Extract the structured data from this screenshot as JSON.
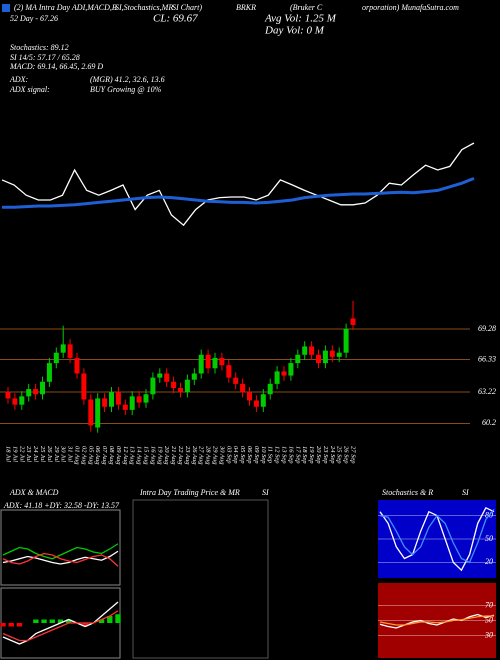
{
  "header": {
    "items": [
      "(2) MA Intra Day ADI,MACD,B",
      "SI,Stochastics,MR",
      "SI Chart)",
      "BRKR",
      "(Bruker C",
      "orporation) MunafaSutra.com",
      "52 Day - 67.26",
      "CL: 69.67",
      "Avg Vol: 1.25 M",
      "Day Vol: 0 M",
      "Stochastics: 89.12",
      "SI 14/5: 57.17 / 65.28",
      "MACD: 69.14, 66.45, 2.69 D",
      "ADX:",
      "(MGR) 41.2, 32.6, 13.6",
      "ADX  signal:",
      "BUY Growing @ 10%"
    ]
  },
  "chart_data": [
    {
      "type": "line",
      "ylim": [
        0,
        100
      ],
      "series": [
        {
          "color": "#ffffff",
          "values": [
            66.7,
            62.5,
            54,
            50,
            50,
            54,
            75,
            58,
            54,
            58,
            62.5,
            42,
            54,
            58,
            37.5,
            29,
            42,
            50,
            52,
            52.5,
            52.5,
            50,
            54,
            66.7,
            62.5,
            58,
            54,
            50,
            46,
            46,
            47.5,
            54,
            64,
            62.5,
            71,
            79,
            75,
            78,
            92,
            97.5
          ]
        },
        {
          "color": "#1f5fd6",
          "values": [
            44,
            44,
            44.5,
            45,
            45,
            45.5,
            46,
            47,
            48,
            49,
            50,
            51,
            52,
            52.5,
            52,
            51,
            50,
            49,
            48.5,
            48,
            48,
            47.5,
            48,
            49,
            50,
            52,
            53,
            54,
            54.5,
            55,
            55,
            55.5,
            56,
            56.5,
            56,
            57,
            58,
            61,
            64,
            68
          ]
        }
      ]
    },
    {
      "type": "candlestick",
      "ylim": [
        58.6,
        72.07
      ],
      "yticks": [
        69.28,
        66.33,
        63.22,
        60.2
      ],
      "grid": true,
      "up_color": "#00cc00",
      "down_color": "#ff0000",
      "grid_color": "#b5651d",
      "categories": [
        "18 Jul",
        "19 Jul",
        "22 Jul",
        "23 Jul",
        "24 Jul",
        "25 Jul",
        "26 Jul",
        "29 Jul",
        "30 Jul",
        "31 Jul",
        "01 Aug",
        "02 Aug",
        "05 Aug",
        "06 Aug",
        "07 Aug",
        "08 Aug",
        "09 Aug",
        "12 Aug",
        "13 Aug",
        "14 Aug",
        "15 Aug",
        "16 Aug",
        "19 Aug",
        "20 Aug",
        "21 Aug",
        "22 Aug",
        "23 Aug",
        "26 Aug",
        "27 Aug",
        "28 Aug",
        "29 Aug",
        "30 Aug",
        "03 Sep",
        "04 Sep",
        "05 Sep",
        "06 Sep",
        "09 Sep",
        "10 Sep",
        "11 Sep",
        "12 Sep",
        "13 Sep",
        "16 Sep",
        "17 Sep",
        "18 Sep",
        "19 Sep",
        "20 Sep",
        "23 Sep",
        "24 Sep",
        "25 Sep",
        "26 Sep",
        "27 Sep"
      ],
      "open": [
        63.2,
        62.6,
        62.0,
        62.8,
        63.5,
        63.0,
        64.2,
        66.0,
        67.0,
        67.8,
        66.5,
        65.0,
        62.5,
        59.8,
        62.6,
        61.8,
        63.2,
        62.0,
        61.5,
        62.8,
        62.2,
        63.0,
        64.6,
        65.0,
        64.2,
        63.6,
        63.2,
        64.4,
        65.0,
        66.8,
        65.5,
        66.5,
        65.8,
        64.6,
        64.0,
        63.2,
        62.4,
        61.8,
        63.0,
        64.0,
        65.2,
        64.8,
        66.0,
        66.8,
        67.6,
        66.8,
        66.0,
        67.2,
        66.6,
        67.0,
        70.3
      ],
      "high": [
        63.7,
        63.1,
        63.3,
        64.0,
        64.0,
        64.7,
        66.5,
        67.5,
        69.6,
        68.3,
        67.0,
        65.5,
        63.0,
        63.1,
        63.1,
        63.7,
        63.7,
        62.5,
        63.3,
        63.3,
        63.5,
        65.1,
        65.5,
        65.5,
        64.7,
        64.1,
        64.9,
        65.5,
        67.3,
        67.3,
        67.0,
        67.0,
        66.3,
        65.1,
        64.5,
        63.7,
        62.9,
        63.5,
        64.5,
        65.7,
        65.7,
        66.5,
        67.3,
        68.1,
        68.1,
        67.3,
        67.7,
        67.7,
        67.5,
        69.8,
        72.0
      ],
      "low": [
        62.1,
        61.5,
        61.5,
        62.3,
        62.5,
        62.5,
        63.7,
        65.5,
        66.5,
        66.0,
        64.5,
        62.0,
        59.4,
        59.3,
        61.3,
        61.3,
        61.5,
        61.0,
        61.0,
        61.7,
        61.7,
        62.5,
        64.1,
        63.7,
        63.1,
        62.7,
        62.7,
        63.9,
        64.5,
        65.0,
        65.0,
        65.3,
        64.1,
        63.5,
        62.7,
        61.9,
        61.3,
        61.3,
        62.5,
        63.5,
        64.3,
        64.3,
        65.5,
        66.3,
        66.3,
        65.5,
        65.5,
        66.1,
        66.1,
        66.5,
        69.2
      ],
      "close": [
        62.6,
        62.0,
        62.8,
        63.5,
        63.0,
        64.2,
        66.0,
        67.0,
        67.8,
        66.5,
        65.0,
        62.5,
        60.0,
        62.6,
        61.8,
        63.2,
        62.0,
        61.5,
        62.8,
        62.2,
        63.0,
        64.6,
        65.0,
        64.2,
        63.6,
        63.2,
        64.4,
        65.0,
        66.8,
        65.5,
        66.5,
        65.8,
        64.6,
        64.0,
        63.2,
        62.4,
        61.8,
        63.0,
        64.0,
        65.2,
        64.8,
        66.0,
        66.8,
        67.6,
        66.8,
        66.0,
        67.2,
        66.6,
        67.0,
        69.3,
        69.67
      ]
    },
    {
      "type": "line",
      "title": "ADX & MACD",
      "annotation": "ADX: 41.18  +DY: 32.58  -DY: 13.57",
      "ylim": [
        0,
        100
      ],
      "border": "#888888",
      "series": [
        {
          "color": "#ffffff",
          "values": [
            30,
            32,
            35,
            38,
            36,
            33,
            30,
            28,
            30,
            34,
            37,
            35,
            33,
            38,
            45
          ]
        },
        {
          "color": "#00cc00",
          "values": [
            40,
            45,
            50,
            48,
            42,
            38,
            35,
            40,
            45,
            50,
            48,
            44,
            42,
            48,
            55
          ]
        },
        {
          "color": "#ff3333",
          "values": [
            35,
            30,
            28,
            32,
            38,
            42,
            40,
            35,
            32,
            30,
            34,
            38,
            40,
            35,
            25
          ]
        }
      ]
    },
    {
      "type": "macd",
      "ylim": [
        -1,
        1
      ],
      "border": "#888888",
      "up_color": "#00cc00",
      "down_color": "#ff0000",
      "histogram": [
        -0.1,
        -0.1,
        -0.1,
        0,
        0.1,
        0.1,
        0.1,
        0.1,
        0.1,
        0,
        -0.1,
        0,
        0.1,
        0.2,
        0.25
      ],
      "series": [
        {
          "color": "#ffffff",
          "values": [
            -0.4,
            -0.5,
            -0.6,
            -0.5,
            -0.3,
            -0.2,
            -0.1,
            0.0,
            0.1,
            0.0,
            -0.1,
            0.0,
            0.2,
            0.4,
            0.6
          ]
        },
        {
          "color": "#ff3333",
          "values": [
            -0.3,
            -0.4,
            -0.5,
            -0.5,
            -0.4,
            -0.3,
            -0.2,
            -0.1,
            0.0,
            0.0,
            0.0,
            0.0,
            0.1,
            0.2,
            0.35
          ]
        }
      ]
    },
    {
      "type": "panel",
      "title": "Intra Day Trading Price & MR",
      "subtitle": "SI",
      "border": "#555555"
    },
    {
      "type": "line",
      "title": "Stochastics & R",
      "subtitle": "SI",
      "background": "#0000c8",
      "ylim": [
        0,
        100
      ],
      "yticks": [
        20,
        50,
        80
      ],
      "grid": true,
      "series": [
        {
          "color": "#ffffff",
          "values": [
            85,
            70,
            40,
            25,
            30,
            60,
            85,
            80,
            50,
            20,
            10,
            30,
            70,
            90,
            85
          ]
        },
        {
          "color": "#3f8fff",
          "values": [
            80,
            78,
            60,
            40,
            30,
            40,
            65,
            80,
            70,
            45,
            25,
            20,
            45,
            75,
            88
          ]
        }
      ]
    },
    {
      "type": "line",
      "background": "#a00000",
      "ylim": [
        0,
        100
      ],
      "yticks": [
        30,
        50,
        70
      ],
      "grid": true,
      "series": [
        {
          "color": "#ffffff",
          "values": [
            45,
            42,
            40,
            44,
            48,
            50,
            46,
            44,
            48,
            52,
            50,
            55,
            58,
            54,
            57
          ]
        },
        {
          "color": "#ff9933",
          "values": [
            48,
            46,
            44,
            44,
            46,
            48,
            48,
            47,
            48,
            50,
            51,
            53,
            55,
            56,
            56
          ]
        }
      ]
    }
  ]
}
